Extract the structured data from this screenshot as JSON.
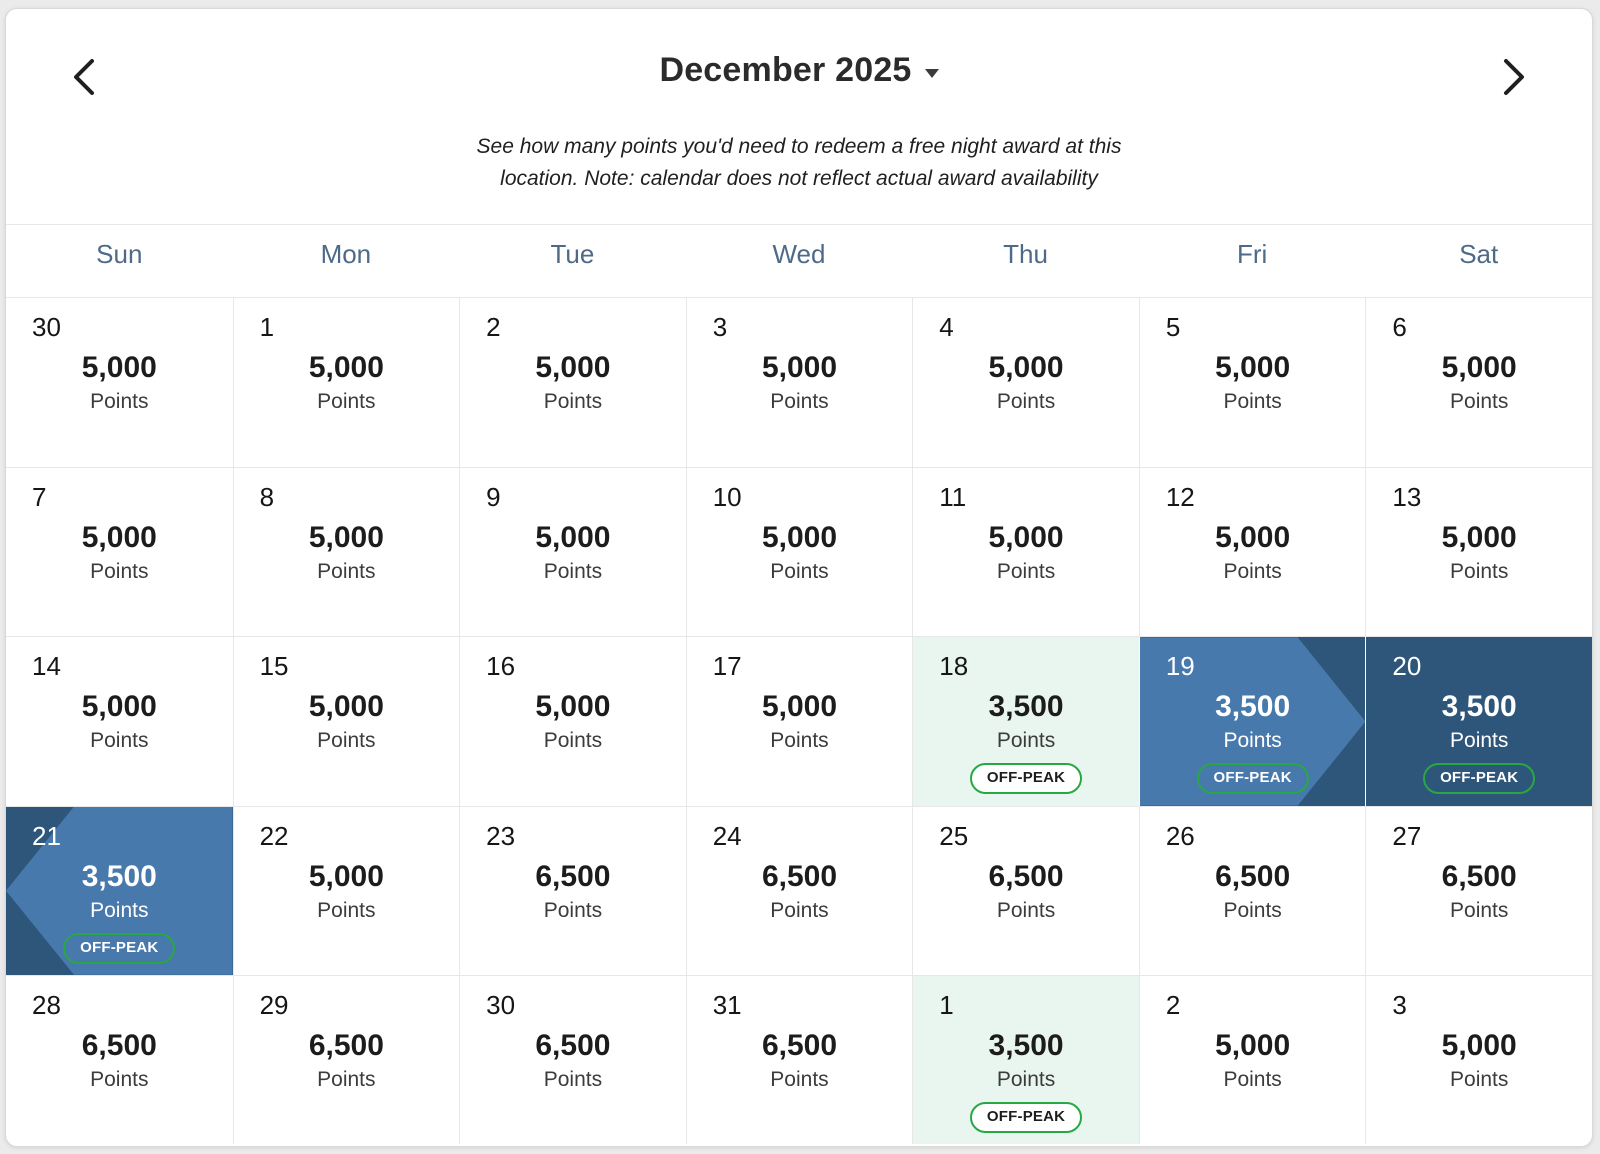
{
  "header": {
    "month_label": "December 2025",
    "prev_button": "previous month",
    "next_button": "next month"
  },
  "subtitle": {
    "line1": "See how many points you'd need to redeem a free night award at this",
    "line2": "location. Note: calendar does not reflect actual award availability"
  },
  "calendar": {
    "weekdays": [
      "Sun",
      "Mon",
      "Tue",
      "Wed",
      "Thu",
      "Fri",
      "Sat"
    ],
    "points_label": "Points",
    "offpeak_label": "OFF-PEAK",
    "cells": [
      {
        "day": "30",
        "points": "5,000"
      },
      {
        "day": "1",
        "points": "5,000"
      },
      {
        "day": "2",
        "points": "5,000"
      },
      {
        "day": "3",
        "points": "5,000"
      },
      {
        "day": "4",
        "points": "5,000"
      },
      {
        "day": "5",
        "points": "5,000"
      },
      {
        "day": "6",
        "points": "5,000"
      },
      {
        "day": "7",
        "points": "5,000"
      },
      {
        "day": "8",
        "points": "5,000"
      },
      {
        "day": "9",
        "points": "5,000"
      },
      {
        "day": "10",
        "points": "5,000"
      },
      {
        "day": "11",
        "points": "5,000"
      },
      {
        "day": "12",
        "points": "5,000"
      },
      {
        "day": "13",
        "points": "5,000"
      },
      {
        "day": "14",
        "points": "5,000"
      },
      {
        "day": "15",
        "points": "5,000"
      },
      {
        "day": "16",
        "points": "5,000"
      },
      {
        "day": "17",
        "points": "5,000"
      },
      {
        "day": "18",
        "points": "3,500",
        "off_peak": true,
        "state": "off-peak-highlight"
      },
      {
        "day": "19",
        "points": "3,500",
        "off_peak": true,
        "state": "selected-start"
      },
      {
        "day": "20",
        "points": "3,500",
        "off_peak": true,
        "state": "selected-middle"
      },
      {
        "day": "21",
        "points": "3,500",
        "off_peak": true,
        "state": "selected-end"
      },
      {
        "day": "22",
        "points": "5,000"
      },
      {
        "day": "23",
        "points": "6,500"
      },
      {
        "day": "24",
        "points": "6,500"
      },
      {
        "day": "25",
        "points": "6,500"
      },
      {
        "day": "26",
        "points": "6,500"
      },
      {
        "day": "27",
        "points": "6,500"
      },
      {
        "day": "28",
        "points": "6,500"
      },
      {
        "day": "29",
        "points": "6,500"
      },
      {
        "day": "30",
        "points": "6,500"
      },
      {
        "day": "31",
        "points": "6,500"
      },
      {
        "day": "1",
        "points": "3,500",
        "off_peak": true,
        "state": "off-peak-highlight"
      },
      {
        "day": "2",
        "points": "5,000"
      },
      {
        "day": "3",
        "points": "5,000"
      }
    ]
  },
  "colors": {
    "selected_range_light": "#4879AD",
    "selected_range_dark": "#2E567A",
    "off_peak_highlight_bg": "#E9F6EF",
    "off_peak_badge_green": "#28A745",
    "weekday_text": "#4D6A88"
  }
}
